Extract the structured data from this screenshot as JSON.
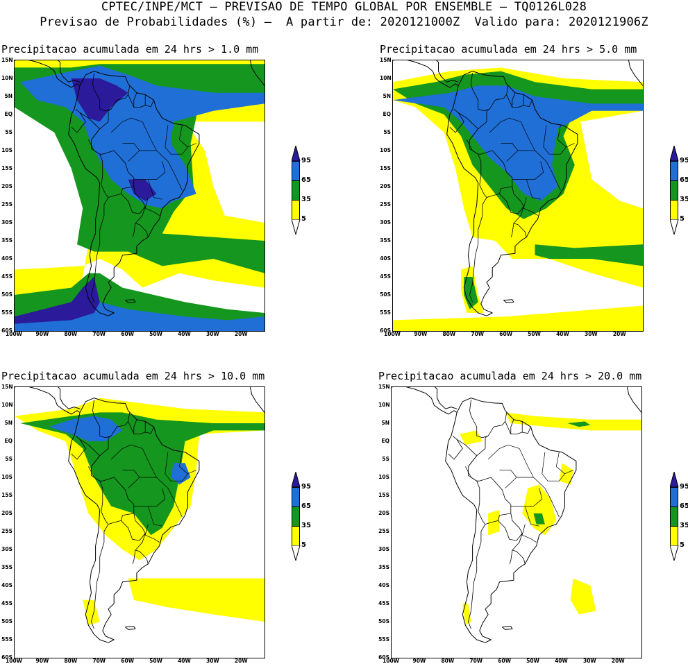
{
  "header": {
    "line1": "CPTEC/INPE/MCT – PREVISAO DE TEMPO GLOBAL POR ENSEMBLE – TQ0126L028",
    "line2": "Previsao de Probabilidades (%) –  A partir de: 2020121000Z  Valido para: 2020121906Z"
  },
  "panels": [
    {
      "title": "Precipitacao acumulada em 24 hrs > 1.0 mm",
      "threshold_mm": 1.0
    },
    {
      "title": "Precipitacao acumulada em 24 hrs > 5.0 mm",
      "threshold_mm": 5.0
    },
    {
      "title": "Precipitacao acumulada em 24 hrs > 10.0 mm",
      "threshold_mm": 10.0
    },
    {
      "title": "Precipitacao acumulada em 24 hrs > 20.0 mm",
      "threshold_mm": 20.0
    }
  ],
  "axes": {
    "lat_labels": [
      "15N",
      "10N",
      "5N",
      "EQ",
      "5S",
      "10S",
      "15S",
      "20S",
      "25S",
      "30S",
      "35S",
      "40S",
      "45S",
      "50S",
      "55S",
      "60S"
    ],
    "lon_labels": [
      "100W",
      "90W",
      "80W",
      "70W",
      "60W",
      "50W",
      "40W",
      "30W",
      "20W"
    ]
  },
  "legend": {
    "labels": [
      "95",
      "65",
      "35",
      "5"
    ],
    "colors": {
      "c95": "#2b1a9a",
      "c65": "#1f6fd6",
      "c35": "#15961e",
      "c5": "#ffff00"
    }
  }
}
